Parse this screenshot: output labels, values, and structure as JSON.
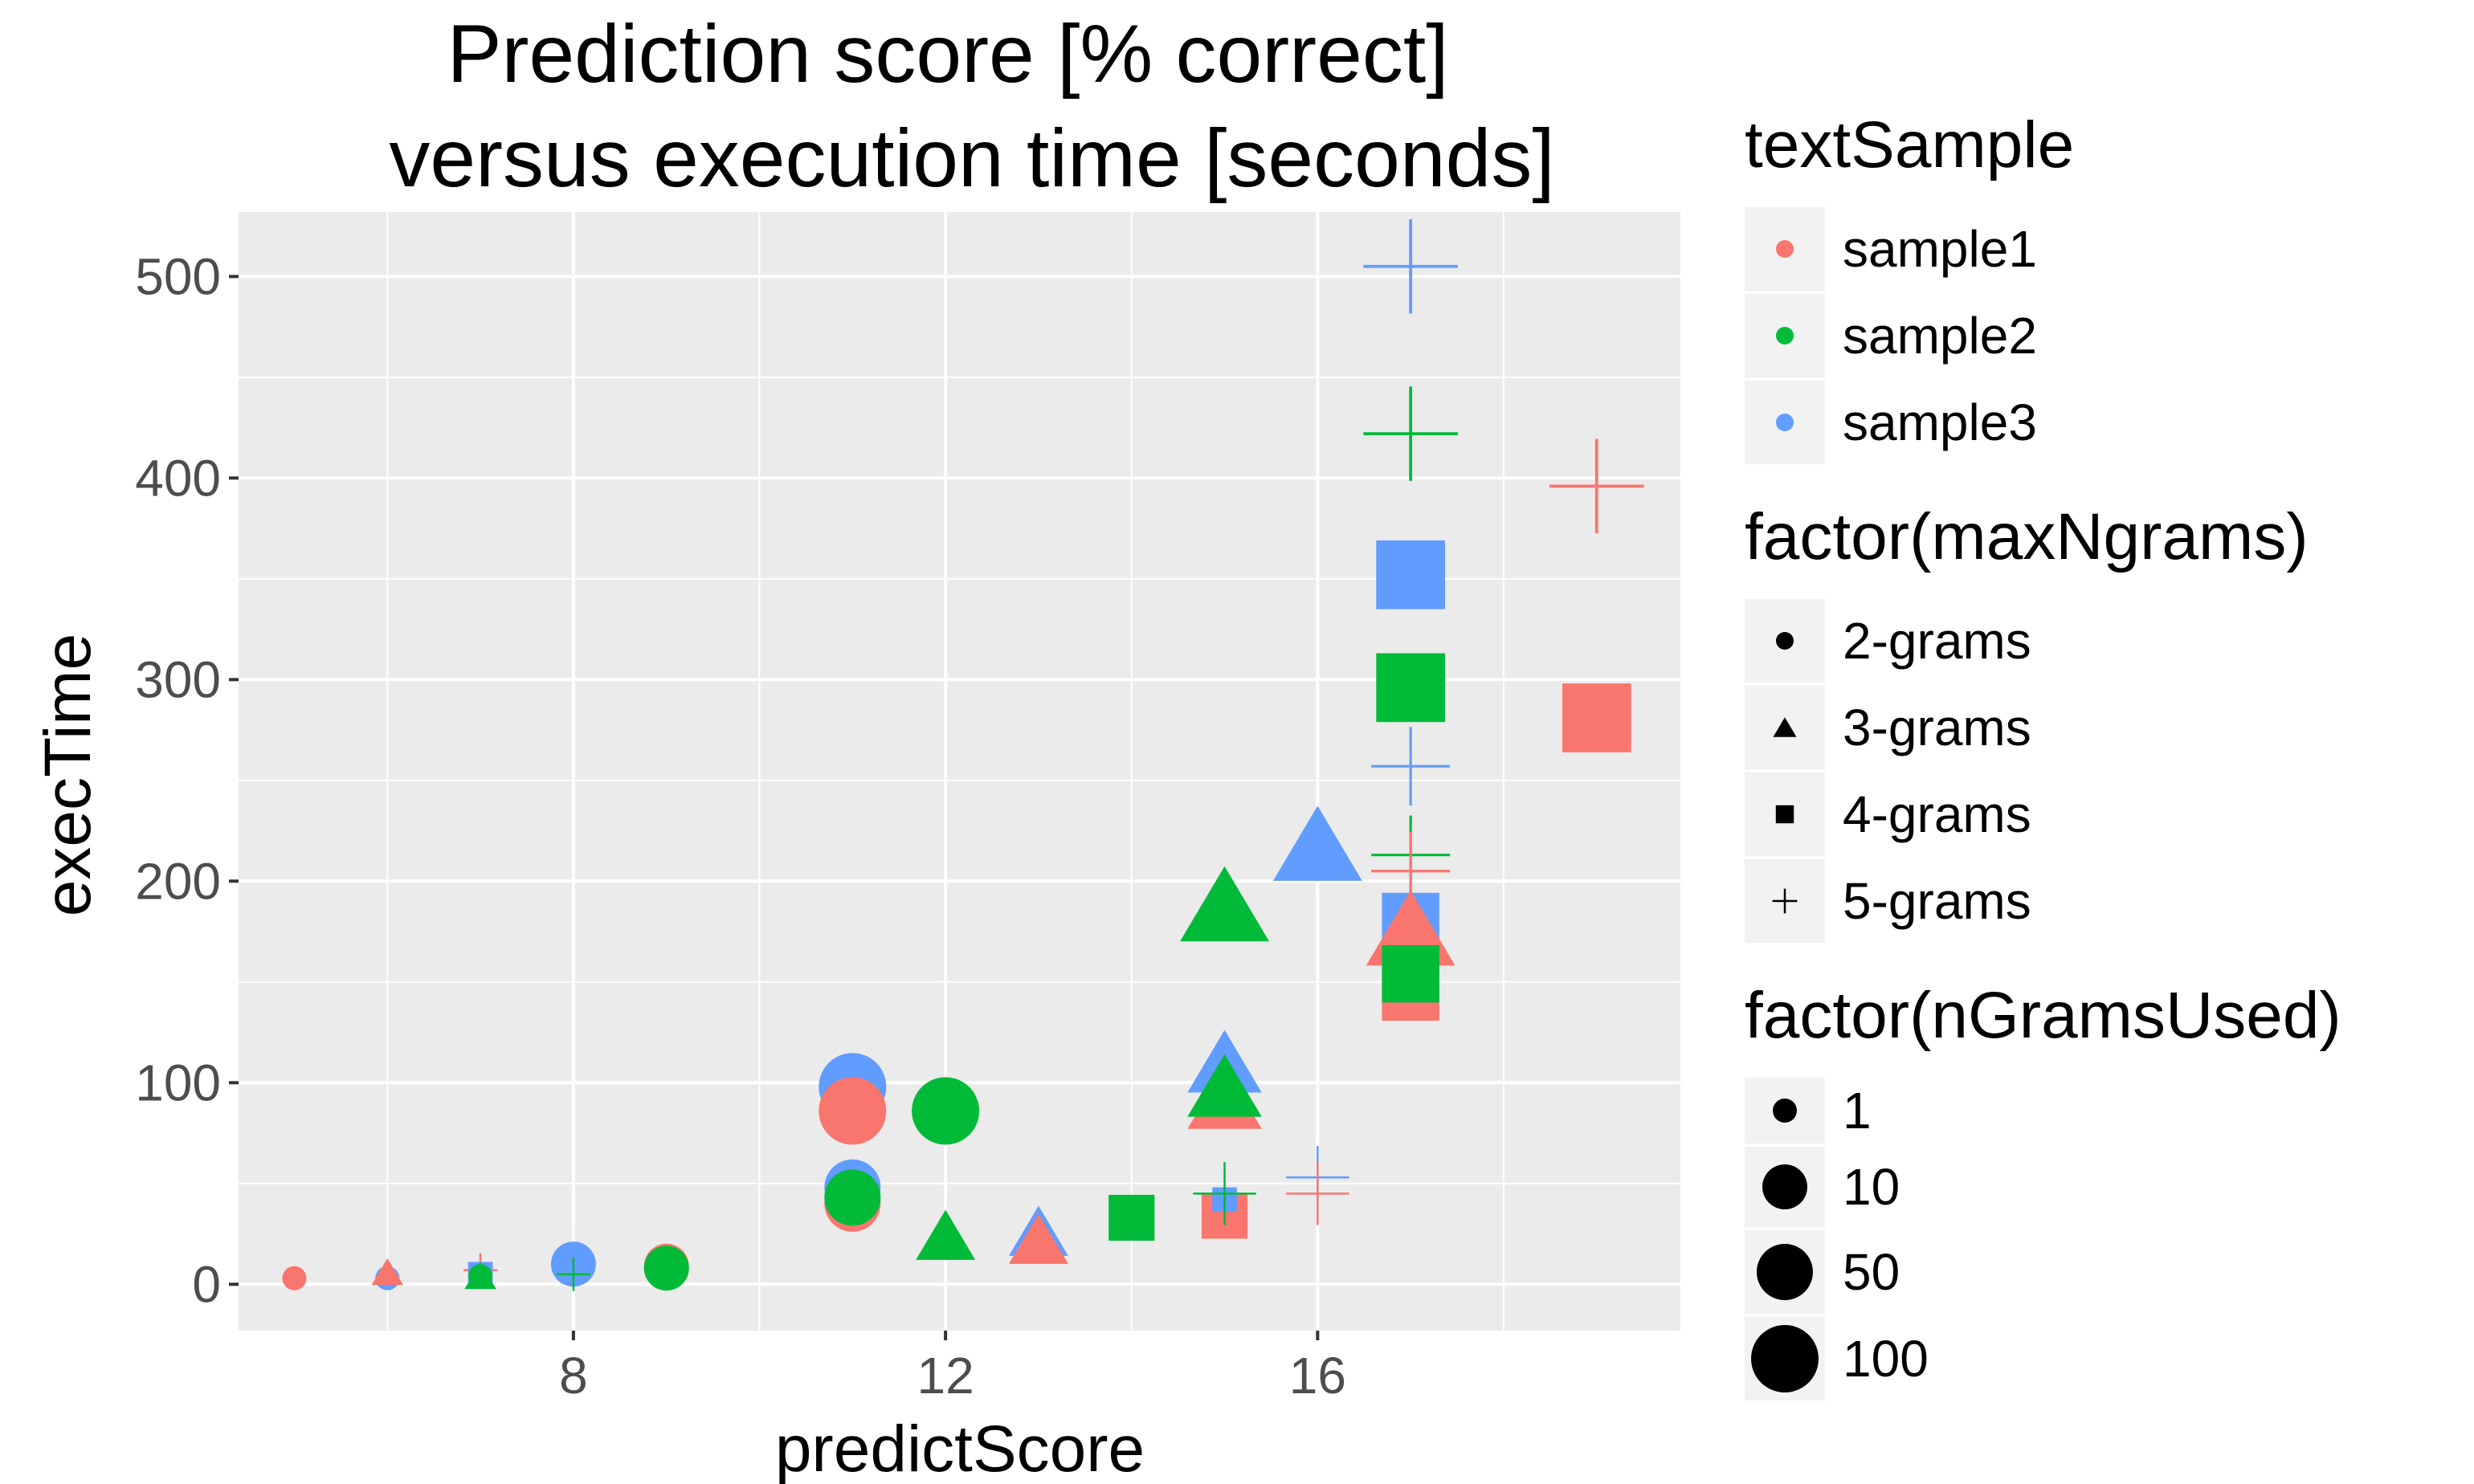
{
  "chart_data": {
    "type": "scatter",
    "title": [
      "Prediction score [% correct]",
      "versus execution time [seconds]"
    ],
    "xlabel": "predictScore",
    "ylabel": "execTime",
    "xlim": [
      4.4,
      19.9
    ],
    "ylim": [
      -23,
      532
    ],
    "xticks": [
      8,
      12,
      16
    ],
    "yticks": [
      0,
      100,
      200,
      300,
      400,
      500
    ],
    "xtick_labels": [
      "8",
      "12",
      "16"
    ],
    "ytick_labels": [
      "0",
      "100",
      "200",
      "300",
      "400",
      "500"
    ],
    "grid": true,
    "legend_position": "right",
    "colors": {
      "sample1": "#F8766D",
      "sample2": "#00BA38",
      "sample3": "#619CFF"
    },
    "legends": [
      {
        "title": "textSample",
        "kind": "color",
        "entries": [
          {
            "label": "sample1",
            "key": "sample1"
          },
          {
            "label": "sample2",
            "key": "sample2"
          },
          {
            "label": "sample3",
            "key": "sample3"
          }
        ]
      },
      {
        "title": "factor(maxNgrams)",
        "kind": "shape",
        "entries": [
          {
            "label": "2-grams",
            "shape": "circle"
          },
          {
            "label": "3-grams",
            "shape": "triangle"
          },
          {
            "label": "4-grams",
            "shape": "square"
          },
          {
            "label": "5-grams",
            "shape": "plus"
          }
        ]
      },
      {
        "title": "factor(nGramsUsed)",
        "kind": "size",
        "entries": [
          {
            "label": "1",
            "size": "1"
          },
          {
            "label": "10",
            "size": "10"
          },
          {
            "label": "50",
            "size": "50"
          },
          {
            "label": "100",
            "size": "100"
          }
        ]
      }
    ],
    "points": [
      {
        "x": 5,
        "y": 3,
        "sample": "sample1",
        "shape": "circle",
        "size": "1"
      },
      {
        "x": 6,
        "y": 3,
        "sample": "sample3",
        "shape": "circle",
        "size": "1"
      },
      {
        "x": 6,
        "y": 6,
        "sample": "sample1",
        "shape": "triangle",
        "size": "1"
      },
      {
        "x": 7,
        "y": 7,
        "sample": "sample1",
        "shape": "plus",
        "size": "1"
      },
      {
        "x": 7,
        "y": 5,
        "sample": "sample3",
        "shape": "square",
        "size": "1"
      },
      {
        "x": 7,
        "y": 4,
        "sample": "sample2",
        "shape": "circle",
        "size": "1"
      },
      {
        "x": 7,
        "y": 4,
        "sample": "sample2",
        "shape": "triangle",
        "size": "1"
      },
      {
        "x": 8,
        "y": 10,
        "sample": "sample3",
        "shape": "circle",
        "size": "10"
      },
      {
        "x": 8,
        "y": 5,
        "sample": "sample2",
        "shape": "plus",
        "size": "1"
      },
      {
        "x": 9,
        "y": 9,
        "sample": "sample1",
        "shape": "circle",
        "size": "10"
      },
      {
        "x": 9,
        "y": 8,
        "sample": "sample2",
        "shape": "circle",
        "size": "10"
      },
      {
        "x": 11,
        "y": 98,
        "sample": "sample3",
        "shape": "circle",
        "size": "100"
      },
      {
        "x": 11,
        "y": 86,
        "sample": "sample1",
        "shape": "circle",
        "size": "100"
      },
      {
        "x": 11,
        "y": 48,
        "sample": "sample3",
        "shape": "circle",
        "size": "50"
      },
      {
        "x": 11,
        "y": 40,
        "sample": "sample1",
        "shape": "circle",
        "size": "50"
      },
      {
        "x": 11,
        "y": 43,
        "sample": "sample2",
        "shape": "circle",
        "size": "50"
      },
      {
        "x": 12,
        "y": 86,
        "sample": "sample2",
        "shape": "circle",
        "size": "100"
      },
      {
        "x": 12,
        "y": 24,
        "sample": "sample2",
        "shape": "triangle",
        "size": "10"
      },
      {
        "x": 13,
        "y": 26,
        "sample": "sample3",
        "shape": "triangle",
        "size": "10"
      },
      {
        "x": 13,
        "y": 22,
        "sample": "sample1",
        "shape": "triangle",
        "size": "10"
      },
      {
        "x": 14,
        "y": 33,
        "sample": "sample2",
        "shape": "square",
        "size": "10"
      },
      {
        "x": 15,
        "y": 34,
        "sample": "sample1",
        "shape": "square",
        "size": "10"
      },
      {
        "x": 15,
        "y": 42,
        "sample": "sample3",
        "shape": "square",
        "size": "1"
      },
      {
        "x": 15,
        "y": 45,
        "sample": "sample2",
        "shape": "plus",
        "size": "10"
      },
      {
        "x": 15,
        "y": 92,
        "sample": "sample1",
        "shape": "triangle",
        "size": "50"
      },
      {
        "x": 15,
        "y": 110,
        "sample": "sample3",
        "shape": "triangle",
        "size": "50"
      },
      {
        "x": 15,
        "y": 98,
        "sample": "sample2",
        "shape": "triangle",
        "size": "50"
      },
      {
        "x": 15,
        "y": 188,
        "sample": "sample2",
        "shape": "triangle",
        "size": "100"
      },
      {
        "x": 16,
        "y": 53,
        "sample": "sample3",
        "shape": "plus",
        "size": "10"
      },
      {
        "x": 16,
        "y": 45,
        "sample": "sample1",
        "shape": "plus",
        "size": "10"
      },
      {
        "x": 16,
        "y": 218,
        "sample": "sample3",
        "shape": "triangle",
        "size": "100"
      },
      {
        "x": 17,
        "y": 505,
        "sample": "sample3",
        "shape": "plus",
        "size": "100"
      },
      {
        "x": 17,
        "y": 422,
        "sample": "sample2",
        "shape": "plus",
        "size": "100"
      },
      {
        "x": 17,
        "y": 352,
        "sample": "sample3",
        "shape": "square",
        "size": "100"
      },
      {
        "x": 17,
        "y": 296,
        "sample": "sample2",
        "shape": "square",
        "size": "100"
      },
      {
        "x": 17,
        "y": 257,
        "sample": "sample3",
        "shape": "plus",
        "size": "50"
      },
      {
        "x": 17,
        "y": 213,
        "sample": "sample2",
        "shape": "plus",
        "size": "50"
      },
      {
        "x": 17,
        "y": 205,
        "sample": "sample1",
        "shape": "plus",
        "size": "50"
      },
      {
        "x": 17,
        "y": 180,
        "sample": "sample3",
        "shape": "square",
        "size": "50"
      },
      {
        "x": 17,
        "y": 176,
        "sample": "sample1",
        "shape": "triangle",
        "size": "100"
      },
      {
        "x": 17,
        "y": 145,
        "sample": "sample1",
        "shape": "square",
        "size": "50"
      },
      {
        "x": 17,
        "y": 154,
        "sample": "sample2",
        "shape": "square",
        "size": "50"
      },
      {
        "x": 19,
        "y": 396,
        "sample": "sample1",
        "shape": "plus",
        "size": "100"
      },
      {
        "x": 19,
        "y": 281,
        "sample": "sample1",
        "shape": "square",
        "size": "100"
      }
    ]
  }
}
